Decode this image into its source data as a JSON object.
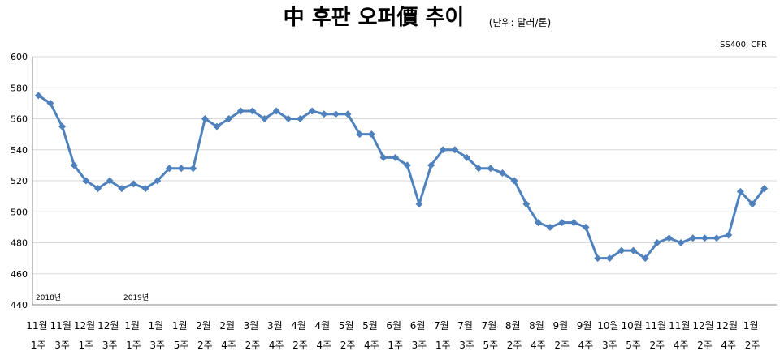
{
  "chart_data": {
    "type": "line",
    "title": "中 후판 오퍼價 추이",
    "unit_note": "(단위: 달러/톤)",
    "subtitle": "SS400, CFR",
    "annotations": [
      "2018년",
      "2019년"
    ],
    "categories": [
      "11월 1주",
      null,
      "11월 3주",
      null,
      "12월 1주",
      null,
      "12월 3주",
      null,
      "1월 1주",
      null,
      "1월 3주",
      null,
      "1월 5주",
      null,
      "2월 2주",
      null,
      "2월 4주",
      null,
      "3월 2주",
      null,
      "3월 4주",
      null,
      "4월 2주",
      null,
      "4월 4주",
      null,
      "5월 2주",
      null,
      "5월 4주",
      null,
      "6월 1주",
      null,
      "6월 3주",
      null,
      "7월 1주",
      null,
      "7월 3주",
      null,
      "7월 5주",
      null,
      "8월 2주",
      null,
      "8월 4주",
      null,
      "9월 2주",
      null,
      "9월 4주",
      null,
      "10월 3주",
      null,
      "10월 5주",
      null,
      "11월 2주",
      null,
      "11월 4주",
      null,
      "12월 2주",
      null,
      "12월 4주",
      null,
      "1월 2주",
      null
    ],
    "series": [
      {
        "name": "SS400, CFR",
        "color": "#4f81bd",
        "values": [
          575,
          570,
          555,
          530,
          520,
          515,
          520,
          515,
          518,
          515,
          520,
          528,
          528,
          528,
          560,
          555,
          560,
          565,
          565,
          560,
          565,
          560,
          560,
          565,
          563,
          563,
          563,
          550,
          550,
          535,
          535,
          530,
          505,
          530,
          540,
          540,
          535,
          528,
          528,
          525,
          520,
          505,
          493,
          490,
          493,
          493,
          490,
          470,
          470,
          475,
          475,
          470,
          480,
          483,
          480,
          483,
          483,
          483,
          485,
          513,
          505,
          515
        ]
      }
    ],
    "ylim": [
      440,
      600
    ],
    "yticks": [
      440,
      460,
      480,
      500,
      520,
      540,
      560,
      580,
      600
    ],
    "grid": true
  }
}
